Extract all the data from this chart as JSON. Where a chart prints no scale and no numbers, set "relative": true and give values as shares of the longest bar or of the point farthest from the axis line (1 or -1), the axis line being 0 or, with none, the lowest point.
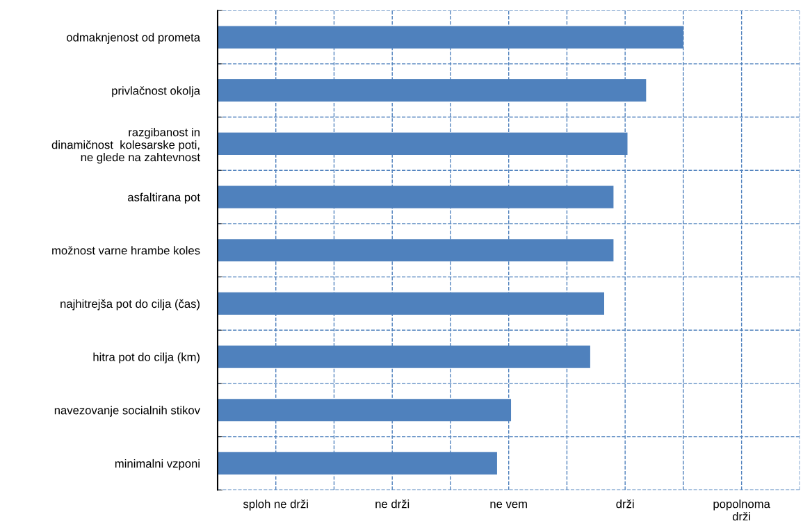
{
  "chart_data": {
    "type": "bar",
    "orientation": "horizontal",
    "relative": true,
    "categories": [
      "odmaknjenost od prometa",
      "privlačnost okolja",
      "razgibanost in\ndinamičnost  kolesarske poti,\nne glede na zahtevnost",
      "asfaltirana pot",
      "možnost varne hrambe koles",
      "najhitrejša pot do cilja (čas)",
      "hitra pot do cilja (km)",
      "navezovanje socialnih stikov",
      "minimalni vzponi"
    ],
    "values": [
      1,
      0.92,
      0.88,
      0.85,
      0.85,
      0.83,
      0.8,
      0.63,
      0.6
    ],
    "color": "#4f81bd",
    "annotations": [
      "sploh ne drži",
      "ne drži",
      "ne vem",
      "drži",
      "popolnoma\ndrži"
    ],
    "grid": true,
    "line_style": "dashed"
  }
}
